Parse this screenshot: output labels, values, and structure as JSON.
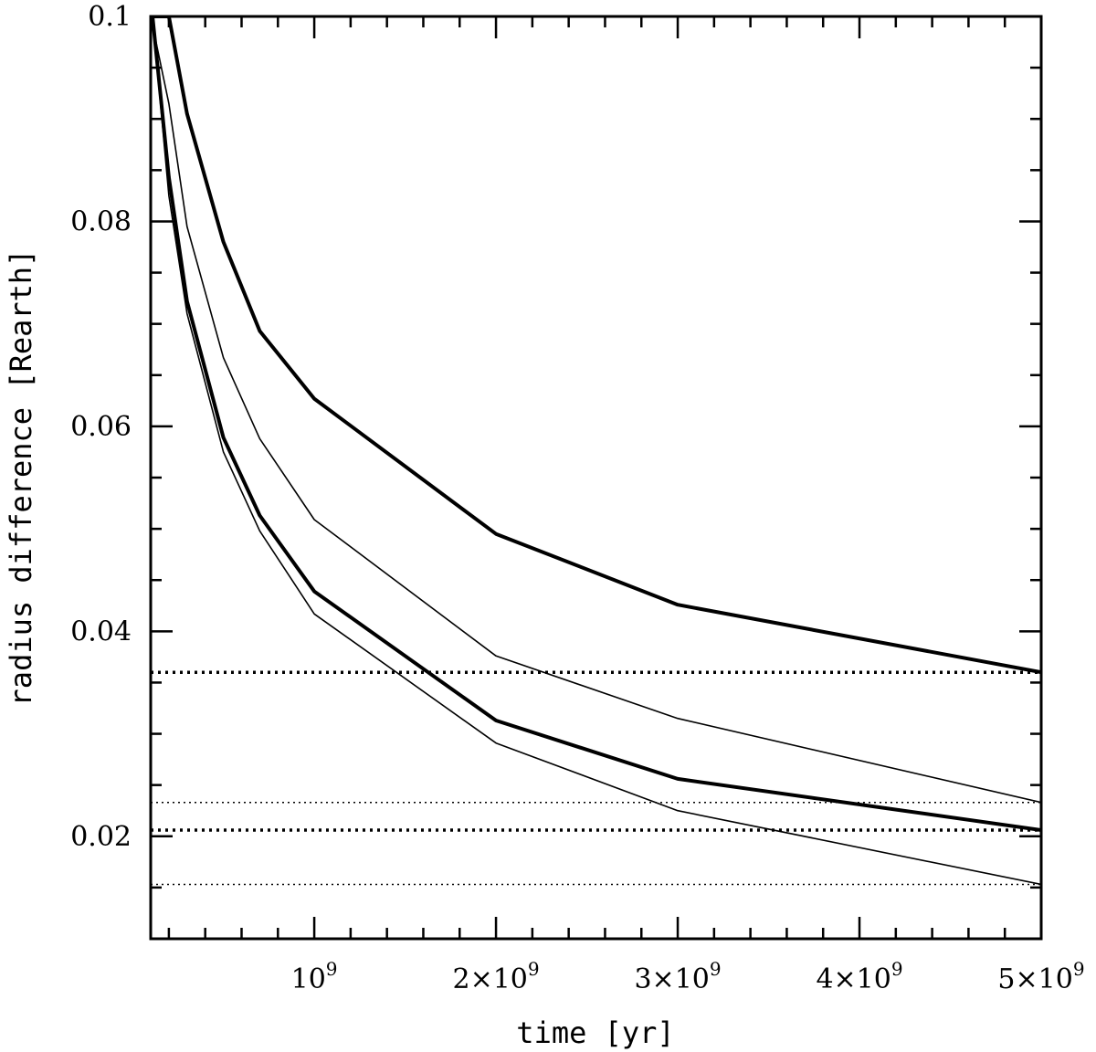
{
  "chart_data": {
    "type": "line",
    "xlabel": "time [yr]",
    "ylabel": "radius difference [Rearth]",
    "xlim": [
      100000000.0,
      5000000000.0
    ],
    "ylim": [
      0.01,
      0.1
    ],
    "x_tick_labels": [
      {
        "value": 1000000000.0,
        "mant": "",
        "base": "10",
        "exp": "9"
      },
      {
        "value": 2000000000.0,
        "mant": "2×",
        "base": "10",
        "exp": "9"
      },
      {
        "value": 3000000000.0,
        "mant": "3×",
        "base": "10",
        "exp": "9"
      },
      {
        "value": 4000000000.0,
        "mant": "4×",
        "base": "10",
        "exp": "9"
      },
      {
        "value": 5000000000.0,
        "mant": "5×",
        "base": "10",
        "exp": "9"
      }
    ],
    "y_ticks": [
      {
        "value": 0.02,
        "label": "0.02"
      },
      {
        "value": 0.04,
        "label": "0.04"
      },
      {
        "value": 0.06,
        "label": "0.06"
      },
      {
        "value": 0.08,
        "label": "0.08"
      },
      {
        "value": 0.1,
        "label": "0.1"
      }
    ],
    "series": [
      {
        "style": "thick",
        "x": [
          120000000.0,
          200000000.0,
          300000000.0,
          500000000.0,
          700000000.0,
          1000000000.0,
          2000000000.0,
          3000000000.0,
          5000000000.0
        ],
        "y": [
          0.1,
          0.1,
          0.0905,
          0.078,
          0.0693,
          0.0627,
          0.0495,
          0.0426,
          0.036
        ]
      },
      {
        "style": "thin",
        "x": [
          100000000.0,
          200000000.0,
          300000000.0,
          500000000.0,
          700000000.0,
          1000000000.0,
          2000000000.0,
          3000000000.0,
          5000000000.0
        ],
        "y": [
          0.1,
          0.0915,
          0.0795,
          0.0667,
          0.0588,
          0.0509,
          0.0376,
          0.0315,
          0.0233
        ]
      },
      {
        "style": "thick",
        "x": [
          110000000.0,
          200000000.0,
          300000000.0,
          500000000.0,
          700000000.0,
          1000000000.0,
          2000000000.0,
          3000000000.0,
          5000000000.0
        ],
        "y": [
          0.1,
          0.0843,
          0.0722,
          0.0589,
          0.0513,
          0.0439,
          0.0313,
          0.0256,
          0.0206
        ]
      },
      {
        "style": "thin",
        "x": [
          110000000.0,
          200000000.0,
          300000000.0,
          500000000.0,
          700000000.0,
          1000000000.0,
          2000000000.0,
          3000000000.0,
          5000000000.0
        ],
        "y": [
          0.1,
          0.0825,
          0.071,
          0.0575,
          0.0498,
          0.0417,
          0.0291,
          0.0225,
          0.0153
        ]
      }
    ],
    "reference_lines": [
      {
        "y": 0.036,
        "style": "thick-dotted"
      },
      {
        "y": 0.0206,
        "style": "thick-dotted"
      },
      {
        "y": 0.0233,
        "style": "thin-dotted"
      },
      {
        "y": 0.0153,
        "style": "thin-dotted"
      }
    ],
    "grid": false,
    "legend": "none"
  }
}
